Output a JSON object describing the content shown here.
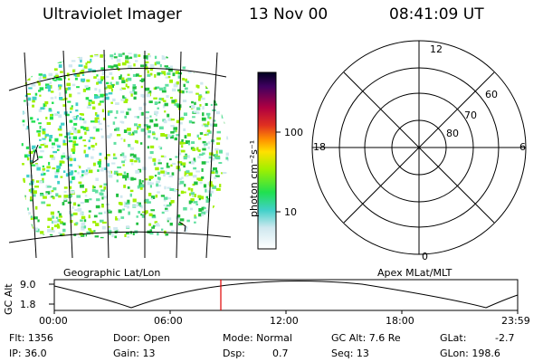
{
  "header": {
    "instrument": "Ultraviolet Imager",
    "date": "13 Nov 00",
    "time": "08:41:09 UT"
  },
  "colorbar": {
    "unit_label": "photon cm⁻²s⁻¹",
    "ticks": [
      "100",
      "10"
    ]
  },
  "map_left": {
    "caption": "Geographic Lat/Lon"
  },
  "polar_plot": {
    "caption": "Apex MLat/MLT",
    "hour_labels": {
      "top": "12",
      "left": "18",
      "right": "6",
      "bottom": "0"
    },
    "lat_labels": [
      "60",
      "70",
      "80"
    ]
  },
  "altitude_plot": {
    "ylabel": "GC Alt",
    "y_ticks": [
      "9.0",
      "1.8"
    ],
    "x_ticks": [
      "00:00",
      "06:00",
      "12:00",
      "18:00",
      "23:59"
    ],
    "marker_time": "08:41"
  },
  "footer": {
    "flt": "Flt: 1356",
    "ip": "IP: 36.0",
    "door": "Door: Open",
    "gain": "Gain: 13",
    "mode": "Mode: Normal",
    "dsp_label": "Dsp:",
    "dsp_value": "0.7",
    "gc_alt": "GC Alt: 7.6 Re",
    "seq": "Seq: 13",
    "glat_label": "GLat:",
    "glat_value": "-2.7",
    "glon": "GLon: 198.6"
  }
}
